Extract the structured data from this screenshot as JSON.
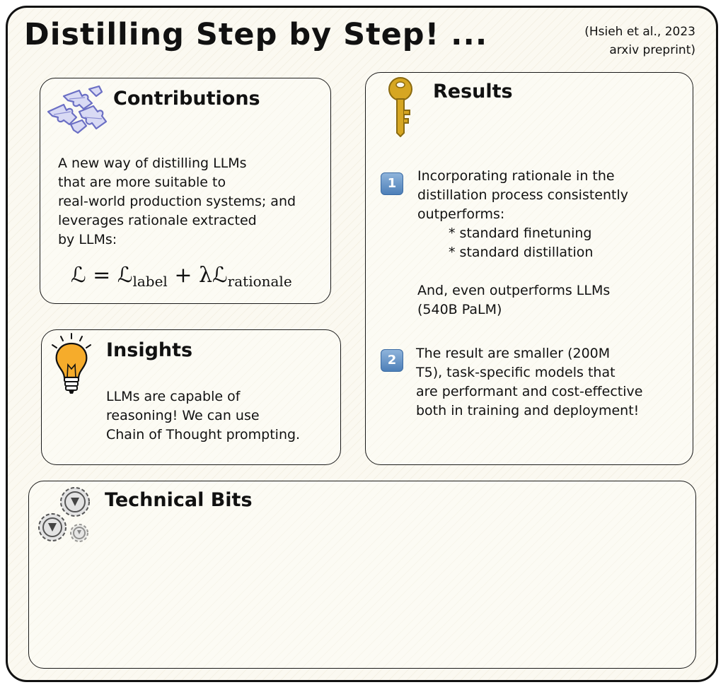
{
  "header": {
    "title": "Distilling Step by Step! ...",
    "citation_line1": "(Hsieh et al., 2023",
    "citation_line2": "arxiv preprint)"
  },
  "contributions": {
    "title": "Contributions",
    "lines": [
      "A new way of distilling LLMs",
      "that are more suitable to",
      "real-world production systems; and",
      "leverages rationale extracted",
      "by LLMs:"
    ],
    "formula": {
      "lhs": "ℒ",
      "equals": "=",
      "term1": "ℒ",
      "term1_sub": "label",
      "plus": "+",
      "term2": "λℒ",
      "term2_sub": "rationale"
    },
    "icon": "puzzle-icon"
  },
  "insights": {
    "title": "Insights",
    "lines": [
      "LLMs are capable of",
      "reasoning! We can use",
      "Chain of Thought prompting."
    ],
    "icon": "lightbulb-icon"
  },
  "results": {
    "title": "Results",
    "icon": "key-icon",
    "item1": {
      "number": "1",
      "lines": [
        "Incorporating rationale in the",
        "distillation process consistently",
        "outperforms:"
      ],
      "bullets": [
        "* standard finetuning",
        "* standard distillation"
      ],
      "extra_lines": [
        "And, even outperforms LLMs",
        "(540B PaLM)"
      ]
    },
    "item2": {
      "number": "2",
      "lines": [
        "The result are smaller (200M",
        "T5), task-specific models that",
        "are performant and cost-effective",
        "both in training and deployment!"
      ]
    }
  },
  "technical": {
    "title": "Technical Bits",
    "icon": "gears-icon"
  },
  "colors": {
    "background": "#fbf9f1",
    "puzzle": "#6b6fc4",
    "bulb": "#f6ac2b",
    "key": "#d6a622",
    "badge": "#5a8bc2"
  }
}
